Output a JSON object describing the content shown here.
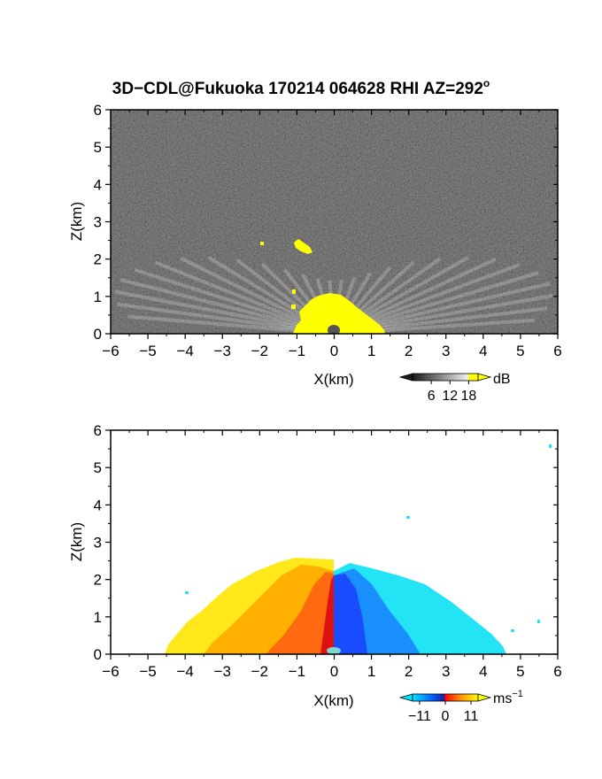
{
  "figure": {
    "title_main": "3D−CDL@Fukuoka 170214 064628 RHI AZ=292",
    "title_degree": "o"
  },
  "chart_data": [
    {
      "type": "heatmap",
      "panel": "reflectivity",
      "xlabel": "X(km)",
      "ylabel": "Z(km)",
      "xlim": [
        -6,
        6
      ],
      "ylim": [
        0,
        6
      ],
      "x_ticks": [
        "−6",
        "−5",
        "−4",
        "−3",
        "−2",
        "−1",
        "0",
        "1",
        "2",
        "3",
        "4",
        "5",
        "6"
      ],
      "y_ticks": [
        "0",
        "1",
        "2",
        "3",
        "4",
        "5",
        "6"
      ],
      "colorbar": {
        "unit": "dB",
        "tick_labels": [
          "6",
          "12",
          "18"
        ],
        "range": [
          0,
          21
        ],
        "colors": [
          "#1a1a1a",
          "#ffffff",
          "#ffff00"
        ]
      },
      "description_features": {
        "background": "noise",
        "bright_fan_center_x": 0,
        "bright_fan_max_height_km": 1.8,
        "saturated_patch_near_ground_x": [
          -1.1,
          1.4
        ],
        "saturated_patch_aloft": {
          "x": -0.8,
          "z": 2.2
        }
      }
    },
    {
      "type": "heatmap",
      "panel": "doppler_velocity",
      "xlabel": "X(km)",
      "ylabel": "Z(km)",
      "xlim": [
        -6,
        6
      ],
      "ylim": [
        0,
        6
      ],
      "x_ticks": [
        "−6",
        "−5",
        "−4",
        "−3",
        "−2",
        "−1",
        "0",
        "1",
        "2",
        "3",
        "4",
        "5",
        "6"
      ],
      "y_ticks": [
        "0",
        "1",
        "2",
        "3",
        "4",
        "5",
        "6"
      ],
      "colorbar": {
        "unit": "ms",
        "unit_exponent": "−1",
        "tick_labels": [
          "−11",
          "0",
          "11"
        ],
        "range": [
          -14,
          14
        ],
        "colors": [
          "#00e5ff",
          "#0040ff",
          "#ff0000",
          "#ffa500",
          "#ffff00"
        ]
      },
      "description_features": {
        "negative_side_x": [
          -4.5,
          0
        ],
        "negative_side_max_height_km": 2.5,
        "positive_side_x": [
          0,
          4.5
        ],
        "positive_side_max_height_km": 2.2
      }
    }
  ]
}
